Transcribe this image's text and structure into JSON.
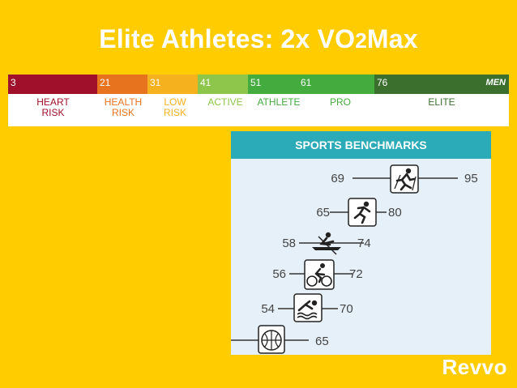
{
  "title": {
    "main": "Elite Athletes: 2x VO",
    "sub": "2",
    "tail": "Max"
  },
  "scale": {
    "gender": "MEN",
    "segments": [
      {
        "value": "3",
        "color": "#A0102A"
      },
      {
        "value": "21",
        "color": "#E8731E"
      },
      {
        "value": "31",
        "color": "#F5B11E"
      },
      {
        "value": "41",
        "color": "#8DC64B"
      },
      {
        "value": "51",
        "color": "#44AC3F"
      },
      {
        "value": "61",
        "color": "#44AC3F"
      },
      {
        "value": "76",
        "color": "#3A6F2E"
      }
    ],
    "zones": [
      {
        "line1": "HEART",
        "line2": "RISK",
        "color": "#A0102A"
      },
      {
        "line1": "HEALTH",
        "line2": "RISK",
        "color": "#E8731E"
      },
      {
        "line1": "LOW",
        "line2": "RISK",
        "color": "#F5B11E"
      },
      {
        "line1": "ACTIVE",
        "line2": "",
        "color": "#8DC64B"
      },
      {
        "line1": "ATHLETE",
        "line2": "",
        "color": "#44AC3F"
      },
      {
        "line1": "PRO",
        "line2": "",
        "color": "#44AC3F"
      },
      {
        "line1": "ELITE",
        "line2": "",
        "color": "#3A6F2E"
      }
    ]
  },
  "benchmarks": {
    "header": "SPORTS BENCHMARKS",
    "rows": [
      {
        "sport_icon": "cross-country-skier-icon",
        "min": "69",
        "max": "95"
      },
      {
        "sport_icon": "runner-icon",
        "min": "65",
        "max": "80"
      },
      {
        "sport_icon": "rower-icon",
        "min": "58",
        "max": "74"
      },
      {
        "sport_icon": "cyclist-icon",
        "min": "56",
        "max": "72"
      },
      {
        "sport_icon": "swimmer-icon",
        "min": "54",
        "max": "70"
      },
      {
        "sport_icon": "basketball-icon",
        "min": "",
        "max": "65"
      }
    ]
  },
  "brand": "Revvo"
}
